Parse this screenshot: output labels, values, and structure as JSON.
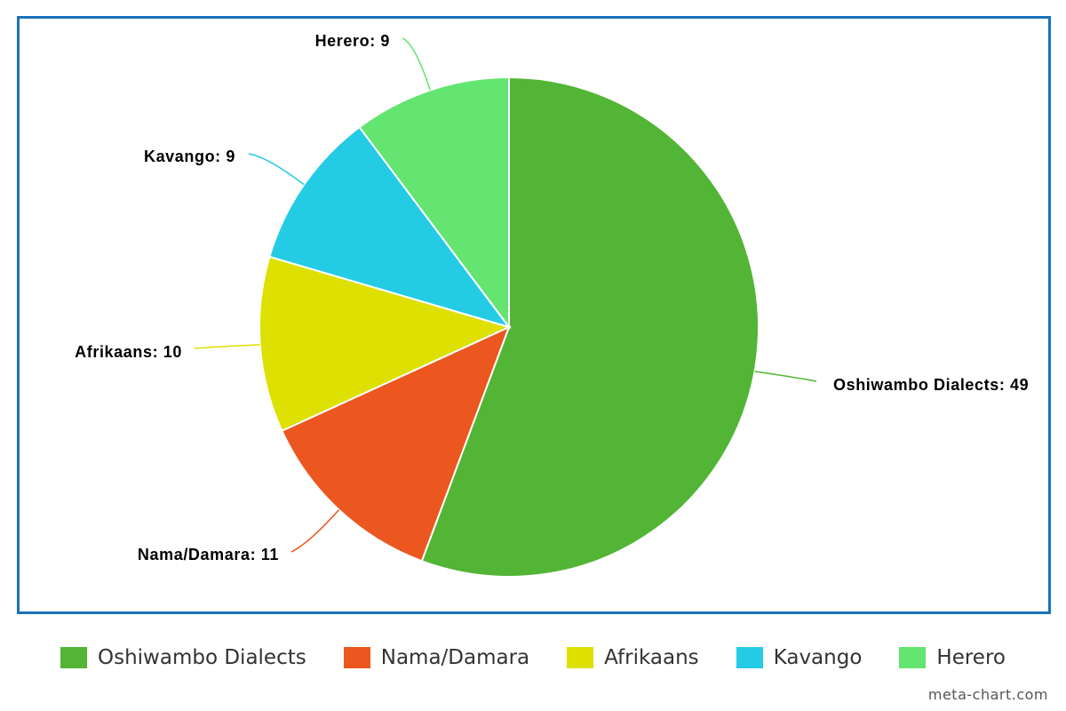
{
  "chart_data": {
    "type": "pie",
    "title": "",
    "slices": [
      {
        "label": "Oshiwambo Dialects",
        "value": 49,
        "color": "#52b535",
        "display": "Oshiwambo Dialects: 49"
      },
      {
        "label": "Nama/Damara",
        "value": 11,
        "color": "#ec561f",
        "display": "Nama/Damara: 11"
      },
      {
        "label": "Afrikaans",
        "value": 10,
        "color": "#dde000",
        "display": "Afrikaans: 10"
      },
      {
        "label": "Kavango",
        "value": 9,
        "color": "#24cbe5",
        "display": "Kavango: 9"
      },
      {
        "label": "Herero",
        "value": 9,
        "color": "#64e572",
        "display": "Herero: 9"
      }
    ],
    "legend_position": "bottom",
    "data_labels": "outside with leader lines"
  },
  "legend": {
    "items": [
      {
        "label": "Oshiwambo Dialects",
        "color": "#52b535"
      },
      {
        "label": "Nama/Damara",
        "color": "#ec561f"
      },
      {
        "label": "Afrikaans",
        "color": "#dde000"
      },
      {
        "label": "Kavango",
        "color": "#24cbe5"
      },
      {
        "label": "Herero",
        "color": "#64e572"
      }
    ]
  },
  "watermark": "meta-chart.com",
  "frame_color": "#1a72bb"
}
